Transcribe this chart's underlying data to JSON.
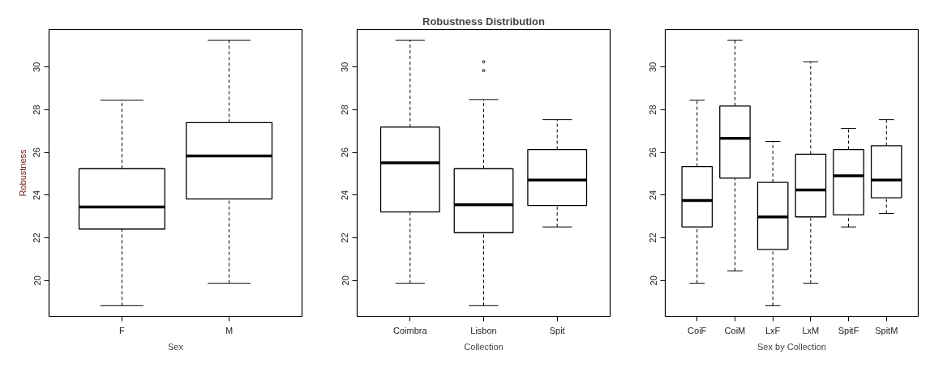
{
  "chart_data": [
    {
      "type": "box",
      "xlabel": "Sex",
      "ylabel": "Robustness",
      "categories": [
        "F",
        "M"
      ],
      "boxes": [
        {
          "low": 18.82,
          "q1": 22.41,
          "median": 23.45,
          "q3": 25.24,
          "high": 28.45
        },
        {
          "low": 19.87,
          "q1": 23.82,
          "median": 25.84,
          "q3": 27.4,
          "high": 31.26
        }
      ],
      "ylim": [
        18.32,
        31.76
      ],
      "yticks": [
        20,
        22,
        24,
        26,
        28,
        30
      ],
      "grid": false
    },
    {
      "type": "box",
      "title": "Robustness Distribution",
      "xlabel": "Collection",
      "categories": [
        "Coimbra",
        "Lisbon",
        "Spit"
      ],
      "boxes": [
        {
          "low": 19.87,
          "q1": 23.21,
          "median": 25.51,
          "q3": 27.19,
          "high": 31.26
        },
        {
          "low": 18.82,
          "q1": 22.24,
          "median": 23.55,
          "q3": 25.24,
          "high": 28.48,
          "outliers": [
            30.25,
            29.84
          ]
        },
        {
          "low": 22.51,
          "q1": 23.52,
          "median": 24.71,
          "q3": 26.14,
          "high": 27.54
        }
      ],
      "ylim": [
        18.32,
        31.76
      ],
      "yticks": [
        20,
        22,
        24,
        26,
        28,
        30
      ],
      "grid": false
    },
    {
      "type": "box",
      "xlabel": "Sex by Collection",
      "categories": [
        "CoiF",
        "CoiM",
        "LxF",
        "LxM",
        "SpitF",
        "SpitM"
      ],
      "boxes": [
        {
          "low": 19.87,
          "q1": 22.51,
          "median": 23.75,
          "q3": 25.34,
          "high": 28.45
        },
        {
          "low": 20.45,
          "q1": 24.8,
          "median": 26.66,
          "q3": 28.18,
          "high": 31.26
        },
        {
          "low": 18.82,
          "q1": 21.46,
          "median": 22.98,
          "q3": 24.6,
          "high": 26.52
        },
        {
          "low": 19.87,
          "q1": 22.98,
          "median": 24.24,
          "q3": 25.92,
          "high": 30.25
        },
        {
          "low": 22.51,
          "q1": 23.08,
          "median": 24.91,
          "q3": 26.14,
          "high": 27.13
        },
        {
          "low": 23.14,
          "q1": 23.88,
          "median": 24.71,
          "q3": 26.32,
          "high": 27.54
        }
      ],
      "ylim": [
        18.32,
        31.76
      ],
      "yticks": [
        20,
        22,
        24,
        26,
        28,
        30
      ],
      "grid": false
    }
  ]
}
